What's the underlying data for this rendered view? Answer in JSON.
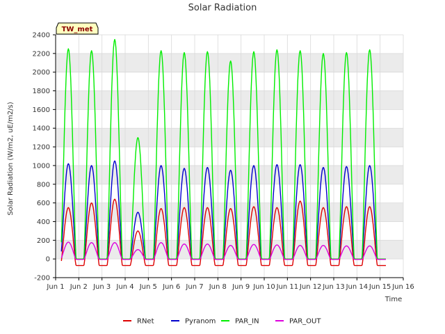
{
  "chart_data": {
    "type": "line",
    "title": "Solar Radiation",
    "xlabel": "Time",
    "ylabel": "Solar Radiation (W/m2, uE/m2/s)",
    "station_label": "TW_met",
    "x_tick_labels": [
      "Jun 1",
      "Jun 2",
      "Jun 3",
      "Jun 4",
      "Jun 5",
      "Jun 6",
      "Jun 7",
      "Jun 8",
      "Jun 9",
      "Jun 10",
      "Jun 11",
      "Jun 12",
      "Jun 13",
      "Jun 14",
      "Jun 15",
      "Jun 16"
    ],
    "xlim": [
      1,
      16
    ],
    "ylim": [
      -200,
      2400
    ],
    "y_ticks": [
      -200,
      0,
      200,
      400,
      600,
      800,
      1000,
      1200,
      1400,
      1600,
      1800,
      2000,
      2200,
      2400
    ],
    "grid": true,
    "legend_position": "bottom",
    "days": [
      "Jun 1",
      "Jun 2",
      "Jun 3",
      "Jun 4",
      "Jun 5",
      "Jun 6",
      "Jun 7",
      "Jun 8",
      "Jun 9",
      "Jun 10",
      "Jun 11",
      "Jun 12",
      "Jun 13",
      "Jun 14"
    ],
    "series": [
      {
        "name": "RNet",
        "color": "#dd0000",
        "night_value": -70,
        "daily_peak": [
          550,
          600,
          640,
          300,
          540,
          550,
          550,
          540,
          560,
          550,
          620,
          550,
          560,
          560
        ]
      },
      {
        "name": "Pyranom",
        "color": "#0000cc",
        "night_value": 0,
        "daily_peak": [
          1020,
          1000,
          1050,
          500,
          1000,
          970,
          980,
          950,
          1000,
          1010,
          1010,
          980,
          990,
          1000
        ]
      },
      {
        "name": "PAR_IN",
        "color": "#00ee00",
        "night_value": 0,
        "daily_peak": [
          2250,
          2230,
          2350,
          1300,
          2230,
          2210,
          2220,
          2120,
          2220,
          2240,
          2230,
          2200,
          2210,
          2240
        ]
      },
      {
        "name": "PAR_OUT",
        "color": "#dd00dd",
        "night_value": -5,
        "daily_peak": [
          180,
          175,
          175,
          100,
          175,
          160,
          160,
          145,
          155,
          150,
          145,
          145,
          140,
          140
        ]
      }
    ]
  }
}
